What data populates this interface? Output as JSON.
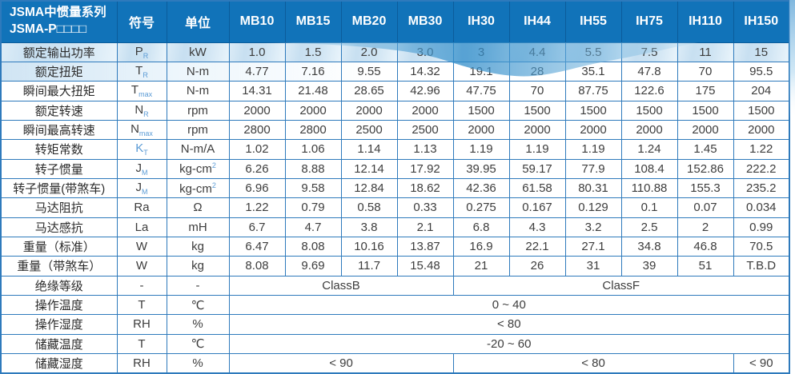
{
  "header": {
    "title_line1": "JSMA中惯量系列",
    "title_line2": "JSMA-P□□□□",
    "symbol_col": "符号",
    "unit_col": "单位",
    "models": [
      "MB10",
      "MB15",
      "MB20",
      "MB30",
      "IH30",
      "IH44",
      "IH55",
      "IH75",
      "IH110",
      "IH150"
    ]
  },
  "rows": [
    {
      "label": "额定输出功率",
      "symbol": {
        "main": "P",
        "sub": "R"
      },
      "unit": "kW",
      "values": [
        "1.0",
        "1.5",
        "2.0",
        "3.0",
        "3",
        "4.4",
        "5.5",
        "7.5",
        "11",
        "15"
      ]
    },
    {
      "label": "额定扭矩",
      "symbol": {
        "main": "T",
        "sub": "R"
      },
      "unit": "N-m",
      "values": [
        "4.77",
        "7.16",
        "9.55",
        "14.32",
        "19.1",
        "28",
        "35.1",
        "47.8",
        "70",
        "95.5"
      ]
    },
    {
      "label": "瞬间最大扭矩",
      "symbol": {
        "main": "T",
        "sub": "max"
      },
      "unit": "N-m",
      "values": [
        "14.31",
        "21.48",
        "28.65",
        "42.96",
        "47.75",
        "70",
        "87.75",
        "122.6",
        "175",
        "204"
      ]
    },
    {
      "label": "额定转速",
      "symbol": {
        "main": "N",
        "sub": "R"
      },
      "unit": "rpm",
      "values": [
        "2000",
        "2000",
        "2000",
        "2000",
        "1500",
        "1500",
        "1500",
        "1500",
        "1500",
        "1500"
      ]
    },
    {
      "label": "瞬间最高转速",
      "symbol": {
        "main": "N",
        "sub": "max"
      },
      "unit": "rpm",
      "values": [
        "2800",
        "2800",
        "2500",
        "2500",
        "2000",
        "2000",
        "2000",
        "2000",
        "2000",
        "2000"
      ]
    },
    {
      "label": "转矩常数",
      "symbol": {
        "main": "K",
        "sub": "T",
        "accent": true
      },
      "unit": "N-m/A",
      "values": [
        "1.02",
        "1.06",
        "1.14",
        "1.13",
        "1.19",
        "1.19",
        "1.19",
        "1.24",
        "1.45",
        "1.22"
      ]
    },
    {
      "label": "转子惯量",
      "symbol": {
        "main": "J",
        "sub": "M"
      },
      "unit": "kg-cm",
      "unit_sup": "2",
      "values": [
        "6.26",
        "8.88",
        "12.14",
        "17.92",
        "39.95",
        "59.17",
        "77.9",
        "108.4",
        "152.86",
        "222.2"
      ]
    },
    {
      "label": "转子惯量(带煞车)",
      "symbol": {
        "main": "J",
        "sub": "M"
      },
      "unit": "kg-cm",
      "unit_sup": "2",
      "values": [
        "6.96",
        "9.58",
        "12.84",
        "18.62",
        "42.36",
        "61.58",
        "80.31",
        "110.88",
        "155.3",
        "235.2"
      ]
    },
    {
      "label": "马达阻抗",
      "symbol": {
        "main": "Ra"
      },
      "unit": "Ω",
      "values": [
        "1.22",
        "0.79",
        "0.58",
        "0.33",
        "0.275",
        "0.167",
        "0.129",
        "0.1",
        "0.07",
        "0.034"
      ]
    },
    {
      "label": "马达感抗",
      "symbol": {
        "main": "La"
      },
      "unit": "mH",
      "values": [
        "6.7",
        "4.7",
        "3.8",
        "2.1",
        "6.8",
        "4.3",
        "3.2",
        "2.5",
        "2",
        "0.99"
      ]
    },
    {
      "label": "重量（标准）",
      "symbol": {
        "main": "W"
      },
      "unit": "kg",
      "values": [
        "6.47",
        "8.08",
        "10.16",
        "13.87",
        "16.9",
        "22.1",
        "27.1",
        "34.8",
        "46.8",
        "70.5"
      ]
    },
    {
      "label": "重量（带煞车）",
      "symbol": {
        "main": "W"
      },
      "unit": "kg",
      "values": [
        "8.08",
        "9.69",
        "11.7",
        "15.48",
        "21",
        "26",
        "31",
        "39",
        "51",
        "T.B.D"
      ]
    },
    {
      "label": "绝缘等级",
      "symbol": {
        "main": "-"
      },
      "unit": "-",
      "cells": [
        {
          "text": "ClassB",
          "span": 4
        },
        {
          "text": "ClassF",
          "span": 6
        }
      ]
    },
    {
      "label": "操作温度",
      "symbol": {
        "main": "T"
      },
      "unit": "℃",
      "cells": [
        {
          "text": "0 ~ 40",
          "span": 10
        }
      ]
    },
    {
      "label": "操作湿度",
      "symbol": {
        "main": "RH"
      },
      "unit": "%",
      "cells": [
        {
          "text": "< 80",
          "span": 10
        }
      ]
    },
    {
      "label": "储藏温度",
      "symbol": {
        "main": "T"
      },
      "unit": "℃",
      "cells": [
        {
          "text": "-20 ~ 60",
          "span": 10
        }
      ]
    },
    {
      "label": "储藏湿度",
      "symbol": {
        "main": "RH"
      },
      "unit": "%",
      "cells": [
        {
          "text": "< 90",
          "span": 4
        },
        {
          "text": "< 80",
          "span": 5
        },
        {
          "text": "< 90",
          "span": 1
        }
      ]
    }
  ],
  "colors": {
    "header_bg": "#1173b9",
    "grid_border": "#2e7abc",
    "header_divider": "#0b5c9b",
    "row1_tint": "#cfe3f2",
    "swoosh_main": "#2f8cc9",
    "swoosh_light": "#a9d4ee",
    "subscript_accent": "#5b9bd5",
    "text": "#3d3d3d"
  }
}
